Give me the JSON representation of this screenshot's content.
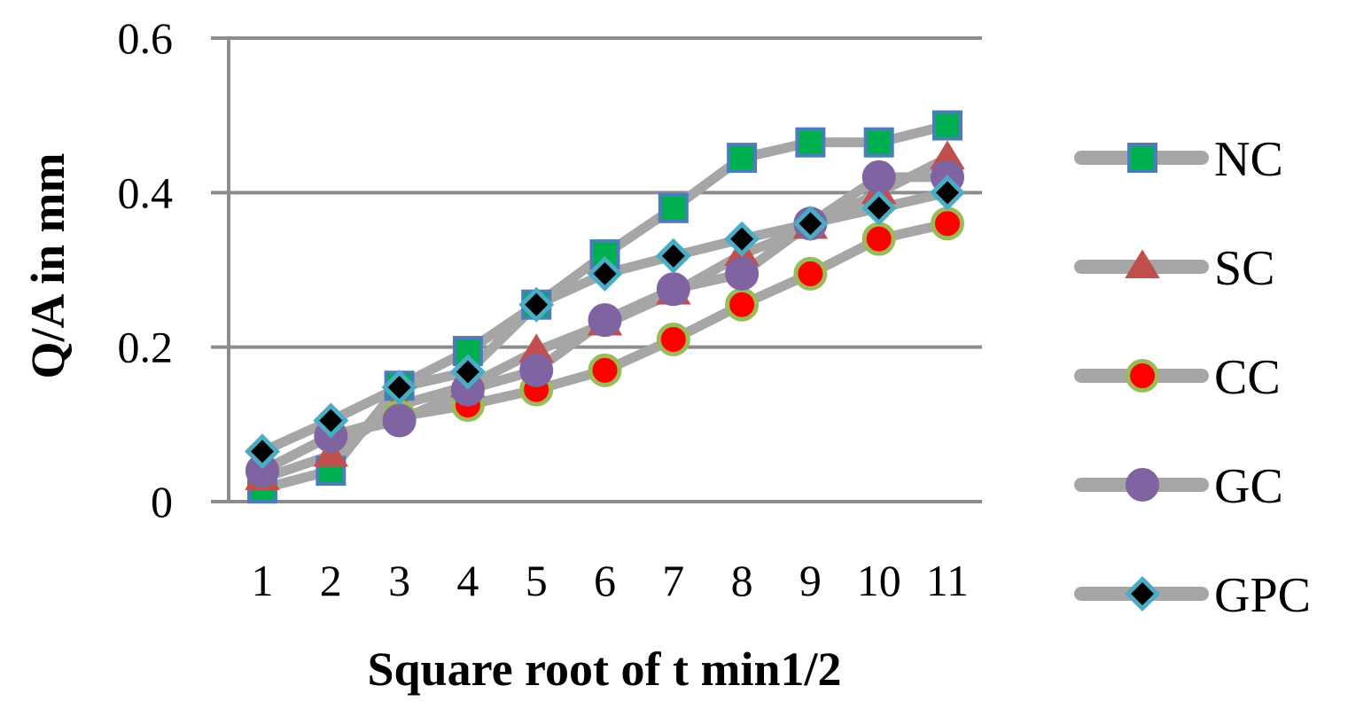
{
  "chart_data": {
    "type": "line",
    "title": "",
    "xlabel": "Square root of t min1/2",
    "ylabel": "Q/A in mm",
    "categories": [
      "1",
      "2",
      "3",
      "4",
      "5",
      "6",
      "7",
      "8",
      "9",
      "10",
      "11"
    ],
    "ylim": [
      0,
      0.6
    ],
    "yticks": [
      "0",
      "0.2",
      "0.4",
      "0.6"
    ],
    "grid": true,
    "legend_position": "right",
    "series": [
      {
        "name": "NC",
        "values": [
          0.017,
          0.04,
          0.15,
          0.195,
          0.255,
          0.32,
          0.38,
          0.445,
          0.465,
          0.465,
          0.487
        ],
        "marker": "square",
        "marker_fill": "#00b050",
        "marker_stroke": "#4a7ebb"
      },
      {
        "name": "SC",
        "values": [
          0.03,
          0.06,
          0.125,
          0.15,
          0.195,
          0.23,
          0.27,
          0.32,
          0.355,
          0.4,
          0.445
        ],
        "marker": "triangle",
        "marker_fill": "#c0504d",
        "marker_stroke": "#c0504d"
      },
      {
        "name": "CC",
        "values": [
          0.04,
          0.085,
          0.11,
          0.125,
          0.145,
          0.17,
          0.21,
          0.255,
          0.295,
          0.34,
          0.36
        ],
        "marker": "circle",
        "marker_fill": "#ff0000",
        "marker_stroke": "#9bbb59"
      },
      {
        "name": "GC",
        "values": [
          0.04,
          0.085,
          0.105,
          0.145,
          0.17,
          0.235,
          0.275,
          0.295,
          0.36,
          0.42,
          0.42
        ],
        "marker": "circle",
        "marker_fill": "#8064a2",
        "marker_stroke": "#8064a2"
      },
      {
        "name": "GPC",
        "values": [
          0.065,
          0.105,
          0.148,
          0.168,
          0.255,
          0.295,
          0.318,
          0.34,
          0.36,
          0.38,
          0.4
        ],
        "marker": "diamond",
        "marker_fill": "#000000",
        "marker_stroke": "#4bacc6"
      }
    ]
  }
}
